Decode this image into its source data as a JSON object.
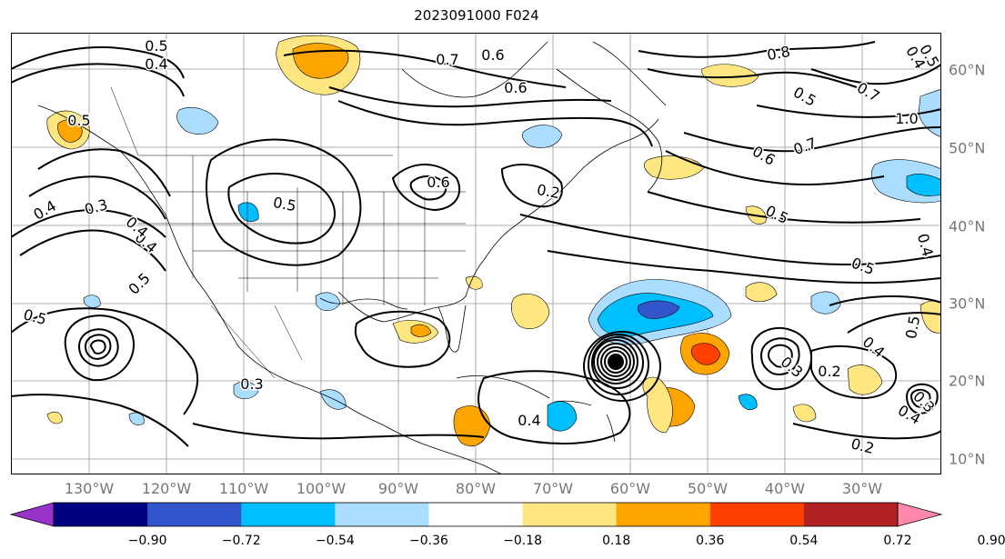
{
  "title": "2023091000 F024",
  "longitude_labels": [
    "130°W",
    "120°W",
    "110°W",
    "100°W",
    "90°W",
    "80°W",
    "70°W",
    "60°W",
    "50°W",
    "40°W",
    "30°W"
  ],
  "latitude_labels": [
    "60°N",
    "50°N",
    "40°N",
    "30°N",
    "20°N",
    "10°N"
  ],
  "colorbar": {
    "tick_labels": [
      "−0.90",
      "−0.72",
      "−0.54",
      "−0.36",
      "−0.18",
      "0.18",
      "0.36",
      "0.54",
      "0.72",
      "0.90"
    ],
    "colors": [
      "#9933cc",
      "#000080",
      "#3355cc",
      "#00bfff",
      "#aaddff",
      "#ffffff",
      "#ffe680",
      "#ffa500",
      "#ff4000",
      "#b22222",
      "#ff88aa"
    ],
    "extend": "both"
  },
  "contour_labels": [
    "0.5",
    "0.4",
    "0.7",
    "0.6",
    "0.8",
    "0.5",
    "0.7",
    "1.0",
    "0.7",
    "0.6",
    "0.5",
    "0.4",
    "0.5",
    "0.4",
    "0.3",
    "0.4",
    "0.5",
    "0.5",
    "0.5",
    "0.6",
    "0.2",
    "0.4",
    "0.3",
    "0.4",
    "0.5",
    "0.2",
    "0.4",
    "0.2",
    "0.3",
    "0.4",
    "0.5",
    "0.3",
    "0.5",
    "0.4",
    "0.6"
  ],
  "colors": {
    "contour": "#000000",
    "coastline": "#000000",
    "gridline": "#999999",
    "axis_labels": "#777777"
  }
}
